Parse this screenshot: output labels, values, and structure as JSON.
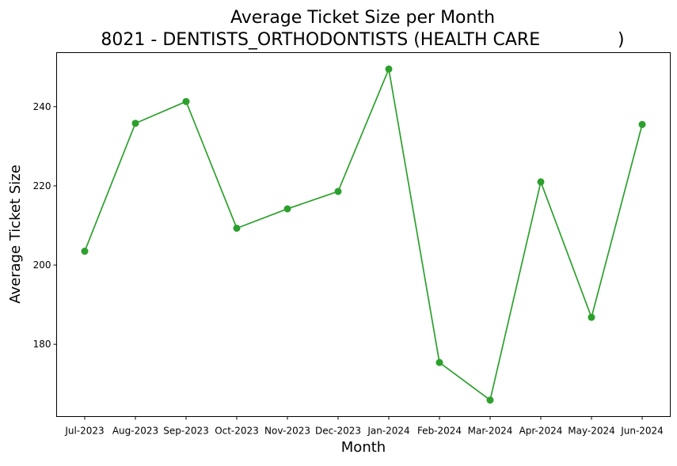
{
  "chart_data": {
    "type": "line",
    "title_line1": "Average Ticket Size per Month",
    "title_line2": "8021 - DENTISTS_ORTHODONTISTS (HEALTH CARE              )",
    "xlabel": "Month",
    "ylabel": "Average Ticket Size",
    "categories": [
      "Jul-2023",
      "Aug-2023",
      "Sep-2023",
      "Oct-2023",
      "Nov-2023",
      "Dec-2023",
      "Jan-2024",
      "Feb-2024",
      "Mar-2024",
      "Apr-2024",
      "May-2024",
      "Jun-2024"
    ],
    "series": [
      {
        "values": [
          203.5,
          235.8,
          241.3,
          209.3,
          214.2,
          218.6,
          249.5,
          175.4,
          165.9,
          221.0,
          186.8,
          235.5
        ],
        "color": "#2ca02c"
      }
    ],
    "ylim": [
      161.75,
      253.65
    ],
    "yticks": [
      180,
      200,
      220,
      240
    ],
    "grid": false,
    "legend": "none"
  }
}
